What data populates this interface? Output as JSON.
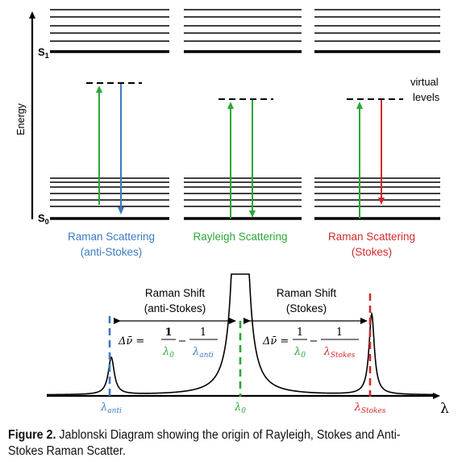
{
  "colors": {
    "anti_stokes": "#3c7bbf",
    "rayleigh": "#2aa835",
    "stokes": "#d22a2a",
    "line": "#000000"
  },
  "jablonski": {
    "energy_axis_label": "Energy",
    "s1_label": "S",
    "s1_sub": "1",
    "s0_label": "S",
    "s0_sub": "0",
    "virtual_label_line1": "virtual",
    "virtual_label_line2": "levels",
    "columns": [
      {
        "id": "anti-stokes",
        "title_line1": "Raman Scattering",
        "title_line2": "(anti-Stokes)",
        "color": "#3c7bbf"
      },
      {
        "id": "rayleigh",
        "title_line1": "Rayleigh Scattering",
        "title_line2": "",
        "color": "#2aa835"
      },
      {
        "id": "stokes",
        "title_line1": "Raman Scattering",
        "title_line2": "(Stokes)",
        "color": "#d22a2a"
      }
    ]
  },
  "spectrum": {
    "left_shift_line1": "Raman Shift",
    "left_shift_line2": "(anti-Stokes)",
    "right_shift_line1": "Raman Shift",
    "right_shift_line2": "(Stokes)",
    "delta_symbol": "Δν̄ =",
    "one": "1",
    "minus": "−",
    "lambda0": "λ",
    "lambda0_sub": "0",
    "lambda_anti": "λ",
    "lambda_anti_sub": "anti",
    "lambda_stokes": "λ",
    "lambda_stokes_sub": "Stokes",
    "x_axis_label": "λ"
  },
  "caption": {
    "label": "Figure 2.",
    "text": " Jablonski Diagram showing the origin of Rayleigh, Stokes and Anti-Stokes Raman Scatter."
  }
}
